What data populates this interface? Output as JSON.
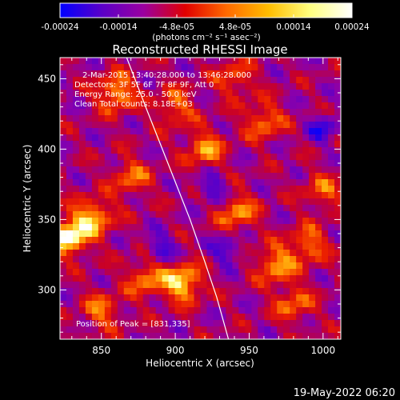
{
  "chart_data": {
    "type": "heatmap",
    "title": "Reconstructed RHESSI Image",
    "xlabel": "Heliocentric X (arcsec)",
    "ylabel": "Heliocentric Y (arcsec)",
    "xlim": [
      822,
      1012
    ],
    "ylim": [
      265,
      465
    ],
    "x_ticks": [
      "850",
      "900",
      "950",
      "1000"
    ],
    "y_ticks": [
      "300",
      "350",
      "400",
      "450"
    ],
    "colorbar": {
      "range": [
        -0.00024,
        0.00024
      ],
      "ticks": [
        "-0.00024",
        "-0.00014",
        "-4.8e-05",
        "4.8e-05",
        "0.00014",
        "0.00024"
      ],
      "label": "(photons cm⁻² s⁻¹ asec⁻²)",
      "colormap": [
        "#0000ff",
        "#5a00c8",
        "#9a00a0",
        "#e00000",
        "#ff6a00",
        "#ffbd00",
        "#ffff80",
        "#ffffff"
      ]
    },
    "annotations": [
      "2-Mar-2015 13:40:28.000 to 13:46:28.000",
      "Detectors: 3F 5F 6F 7F 8F 9F, Att 0",
      "Energy Range: 25.0 - 50.0 keV",
      "Clean    Total counts: 8.18E+03"
    ],
    "peak_label": "Position of Peak = [831,335]",
    "peak": {
      "x": 831,
      "y": 335
    },
    "limb_curve": [
      [
        866,
        468
      ],
      [
        880,
        430
      ],
      [
        895,
        390
      ],
      [
        910,
        350
      ],
      [
        920,
        320
      ],
      [
        928,
        295
      ],
      [
        936,
        265
      ]
    ],
    "hot_spots": [
      {
        "x": 828,
        "y": 338,
        "intensity": 1.0
      },
      {
        "x": 845,
        "y": 352,
        "intensity": 0.7
      },
      {
        "x": 905,
        "y": 305,
        "intensity": 0.85
      },
      {
        "x": 880,
        "y": 308,
        "intensity": 0.55
      },
      {
        "x": 968,
        "y": 318,
        "intensity": 0.65
      },
      {
        "x": 990,
        "y": 332,
        "intensity": 0.55
      },
      {
        "x": 942,
        "y": 355,
        "intensity": 0.6
      },
      {
        "x": 920,
        "y": 400,
        "intensity": 0.6
      },
      {
        "x": 960,
        "y": 420,
        "intensity": 0.55
      },
      {
        "x": 860,
        "y": 440,
        "intensity": 0.7
      },
      {
        "x": 900,
        "y": 430,
        "intensity": 0.5
      },
      {
        "x": 940,
        "y": 450,
        "intensity": 0.45
      },
      {
        "x": 870,
        "y": 380,
        "intensity": 0.5
      },
      {
        "x": 980,
        "y": 290,
        "intensity": 0.5
      },
      {
        "x": 850,
        "y": 285,
        "intensity": 0.5
      },
      {
        "x": 1000,
        "y": 370,
        "intensity": 0.45
      }
    ],
    "cold_spots": [
      {
        "x": 890,
        "y": 330
      },
      {
        "x": 935,
        "y": 328
      },
      {
        "x": 1000,
        "y": 415
      },
      {
        "x": 925,
        "y": 372
      }
    ]
  },
  "footer": {
    "date": "19-May-2022 06:20"
  }
}
